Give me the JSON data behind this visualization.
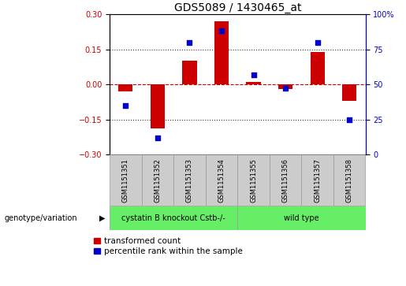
{
  "title": "GDS5089 / 1430465_at",
  "samples": [
    "GSM1151351",
    "GSM1151352",
    "GSM1151353",
    "GSM1151354",
    "GSM1151355",
    "GSM1151356",
    "GSM1151357",
    "GSM1151358"
  ],
  "red_values": [
    -0.03,
    -0.19,
    0.1,
    0.27,
    0.01,
    -0.02,
    0.14,
    -0.07
  ],
  "blue_values": [
    35,
    12,
    80,
    88,
    57,
    47,
    80,
    25
  ],
  "ylim_left": [
    -0.3,
    0.3
  ],
  "ylim_right": [
    0,
    100
  ],
  "yticks_left": [
    -0.3,
    -0.15,
    0,
    0.15,
    0.3
  ],
  "yticks_right": [
    0,
    25,
    50,
    75,
    100
  ],
  "red_color": "#cc0000",
  "blue_color": "#0000cc",
  "dotted_color": "#333333",
  "group1_label": "cystatin B knockout Cstb-/-",
  "group2_label": "wild type",
  "group1_indices": [
    0,
    1,
    2,
    3
  ],
  "group2_indices": [
    4,
    5,
    6,
    7
  ],
  "group_color": "#66ee66",
  "box_color": "#cccccc",
  "box_edge": "#999999",
  "label_row": "genotype/variation",
  "legend_red": "transformed count",
  "legend_blue": "percentile rank within the sample",
  "bar_width": 0.45,
  "title_fontsize": 10,
  "tick_fontsize": 7,
  "sample_fontsize": 6,
  "legend_fontsize": 7.5
}
